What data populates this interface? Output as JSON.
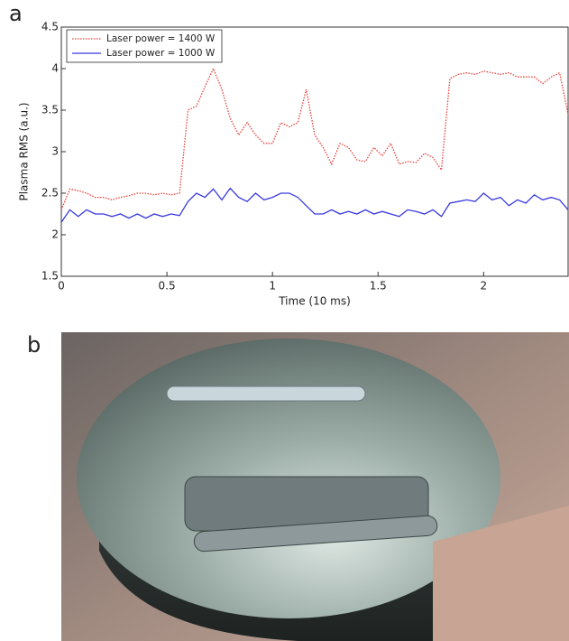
{
  "chart_data": {
    "type": "line",
    "panel_label": "a",
    "xlabel": "Time (10  ms)",
    "ylabel": "Plasma RMS (a.u.)",
    "x": [
      0,
      0.04,
      0.08,
      0.12,
      0.16,
      0.2,
      0.24,
      0.28,
      0.32,
      0.36,
      0.4,
      0.44,
      0.48,
      0.52,
      0.56,
      0.6,
      0.64,
      0.68,
      0.72,
      0.76,
      0.8,
      0.84,
      0.88,
      0.92,
      0.96,
      1,
      1.04,
      1.08,
      1.12,
      1.16,
      1.2,
      1.24,
      1.28,
      1.32,
      1.36,
      1.4,
      1.44,
      1.48,
      1.52,
      1.56,
      1.6,
      1.64,
      1.68,
      1.72,
      1.76,
      1.8,
      1.84,
      1.88,
      1.92,
      1.96,
      2,
      2.04,
      2.08,
      2.12,
      2.16,
      2.2,
      2.24,
      2.28,
      2.32,
      2.36,
      2.4
    ],
    "series": [
      {
        "name": "Laser power = 1400 W",
        "color": "#e8403a",
        "style": "dotted",
        "values": [
          2.3,
          2.55,
          2.53,
          2.5,
          2.45,
          2.45,
          2.42,
          2.45,
          2.47,
          2.5,
          2.5,
          2.48,
          2.5,
          2.48,
          2.5,
          3.5,
          3.55,
          3.78,
          4.0,
          3.75,
          3.4,
          3.2,
          3.35,
          3.2,
          3.1,
          3.1,
          3.35,
          3.3,
          3.35,
          3.75,
          3.2,
          3.05,
          2.85,
          3.1,
          3.05,
          2.9,
          2.88,
          3.05,
          2.95,
          3.1,
          2.85,
          2.88,
          2.87,
          2.98,
          2.93,
          2.78,
          3.88,
          3.93,
          3.95,
          3.93,
          3.97,
          3.95,
          3.93,
          3.95,
          3.9,
          3.9,
          3.9,
          3.82,
          3.9,
          3.95,
          3.45
        ]
      },
      {
        "name": "Laser power = 1000 W",
        "color": "#3a3ae0",
        "style": "solid",
        "values": [
          2.15,
          2.3,
          2.22,
          2.3,
          2.25,
          2.25,
          2.22,
          2.25,
          2.2,
          2.25,
          2.2,
          2.25,
          2.22,
          2.25,
          2.23,
          2.4,
          2.5,
          2.45,
          2.55,
          2.42,
          2.56,
          2.45,
          2.4,
          2.5,
          2.42,
          2.45,
          2.5,
          2.5,
          2.45,
          2.35,
          2.25,
          2.25,
          2.3,
          2.25,
          2.28,
          2.25,
          2.3,
          2.25,
          2.28,
          2.25,
          2.22,
          2.3,
          2.28,
          2.25,
          2.3,
          2.22,
          2.38,
          2.4,
          2.42,
          2.4,
          2.5,
          2.42,
          2.45,
          2.35,
          2.42,
          2.38,
          2.48,
          2.42,
          2.45,
          2.42,
          2.3
        ]
      }
    ],
    "xlim": [
      0,
      2.4
    ],
    "ylim": [
      1.5,
      4.5
    ],
    "xticks": [
      0,
      0.5,
      1,
      1.5,
      2
    ],
    "yticks": [
      1.5,
      2,
      2.5,
      3,
      3.5,
      4,
      4.5
    ],
    "legend": "upper left",
    "grid": false
  },
  "photo": {
    "panel_label": "b"
  }
}
